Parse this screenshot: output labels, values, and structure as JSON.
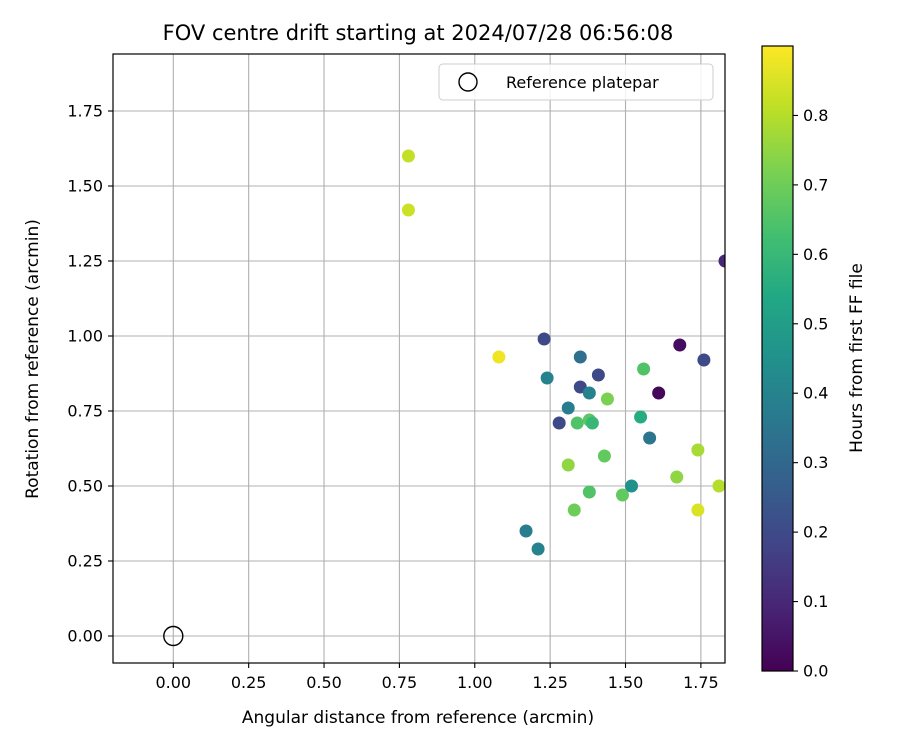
{
  "chart_data": {
    "type": "scatter",
    "title": "FOV centre drift starting at 2024/07/28 06:56:08",
    "xlabel": "Angular distance from reference (arcmin)",
    "ylabel": "Rotation from reference (arcmin)",
    "xlim": [
      -0.2,
      1.83
    ],
    "ylim": [
      -0.09,
      1.94
    ],
    "xticks": [
      "0.00",
      "0.25",
      "0.50",
      "0.75",
      "1.00",
      "1.25",
      "1.50",
      "1.75"
    ],
    "yticks": [
      "0.00",
      "0.25",
      "0.50",
      "0.75",
      "1.00",
      "1.25",
      "1.50",
      "1.75"
    ],
    "grid": true,
    "legend_position": "upper right",
    "legend": [
      {
        "label": "Reference platepar",
        "marker": "open circle"
      }
    ],
    "reference_point": {
      "x": 0.0,
      "y": 0.0
    },
    "colormap": "viridis",
    "colorbar": {
      "label": "Hours from first FF file",
      "range": [
        0.0,
        0.9
      ],
      "ticks": [
        "0.0",
        "0.1",
        "0.2",
        "0.3",
        "0.4",
        "0.5",
        "0.6",
        "0.7",
        "0.8"
      ]
    },
    "points": [
      {
        "x": 0.78,
        "y": 1.6,
        "c": 0.82
      },
      {
        "x": 0.78,
        "y": 1.42,
        "c": 0.83
      },
      {
        "x": 1.08,
        "y": 0.93,
        "c": 0.88
      },
      {
        "x": 1.23,
        "y": 0.99,
        "c": 0.2
      },
      {
        "x": 1.24,
        "y": 0.86,
        "c": 0.4
      },
      {
        "x": 1.35,
        "y": 0.93,
        "c": 0.33
      },
      {
        "x": 1.35,
        "y": 0.83,
        "c": 0.2
      },
      {
        "x": 1.41,
        "y": 0.87,
        "c": 0.2
      },
      {
        "x": 1.38,
        "y": 0.81,
        "c": 0.4
      },
      {
        "x": 1.31,
        "y": 0.76,
        "c": 0.38
      },
      {
        "x": 1.28,
        "y": 0.71,
        "c": 0.2
      },
      {
        "x": 1.34,
        "y": 0.71,
        "c": 0.65
      },
      {
        "x": 1.38,
        "y": 0.72,
        "c": 0.67
      },
      {
        "x": 1.39,
        "y": 0.71,
        "c": 0.6
      },
      {
        "x": 1.44,
        "y": 0.79,
        "c": 0.72
      },
      {
        "x": 1.56,
        "y": 0.89,
        "c": 0.65
      },
      {
        "x": 1.55,
        "y": 0.73,
        "c": 0.55
      },
      {
        "x": 1.58,
        "y": 0.66,
        "c": 0.35
      },
      {
        "x": 1.61,
        "y": 0.81,
        "c": 0.02
      },
      {
        "x": 1.68,
        "y": 0.97,
        "c": 0.03
      },
      {
        "x": 1.76,
        "y": 0.92,
        "c": 0.2
      },
      {
        "x": 1.83,
        "y": 1.25,
        "c": 0.1
      },
      {
        "x": 1.31,
        "y": 0.57,
        "c": 0.75
      },
      {
        "x": 1.43,
        "y": 0.6,
        "c": 0.68
      },
      {
        "x": 1.38,
        "y": 0.48,
        "c": 0.65
      },
      {
        "x": 1.33,
        "y": 0.42,
        "c": 0.7
      },
      {
        "x": 1.49,
        "y": 0.47,
        "c": 0.68
      },
      {
        "x": 1.52,
        "y": 0.5,
        "c": 0.45
      },
      {
        "x": 1.67,
        "y": 0.53,
        "c": 0.75
      },
      {
        "x": 1.74,
        "y": 0.62,
        "c": 0.78
      },
      {
        "x": 1.74,
        "y": 0.42,
        "c": 0.85
      },
      {
        "x": 1.81,
        "y": 0.5,
        "c": 0.8
      },
      {
        "x": 1.17,
        "y": 0.35,
        "c": 0.38
      },
      {
        "x": 1.21,
        "y": 0.29,
        "c": 0.4
      }
    ]
  }
}
